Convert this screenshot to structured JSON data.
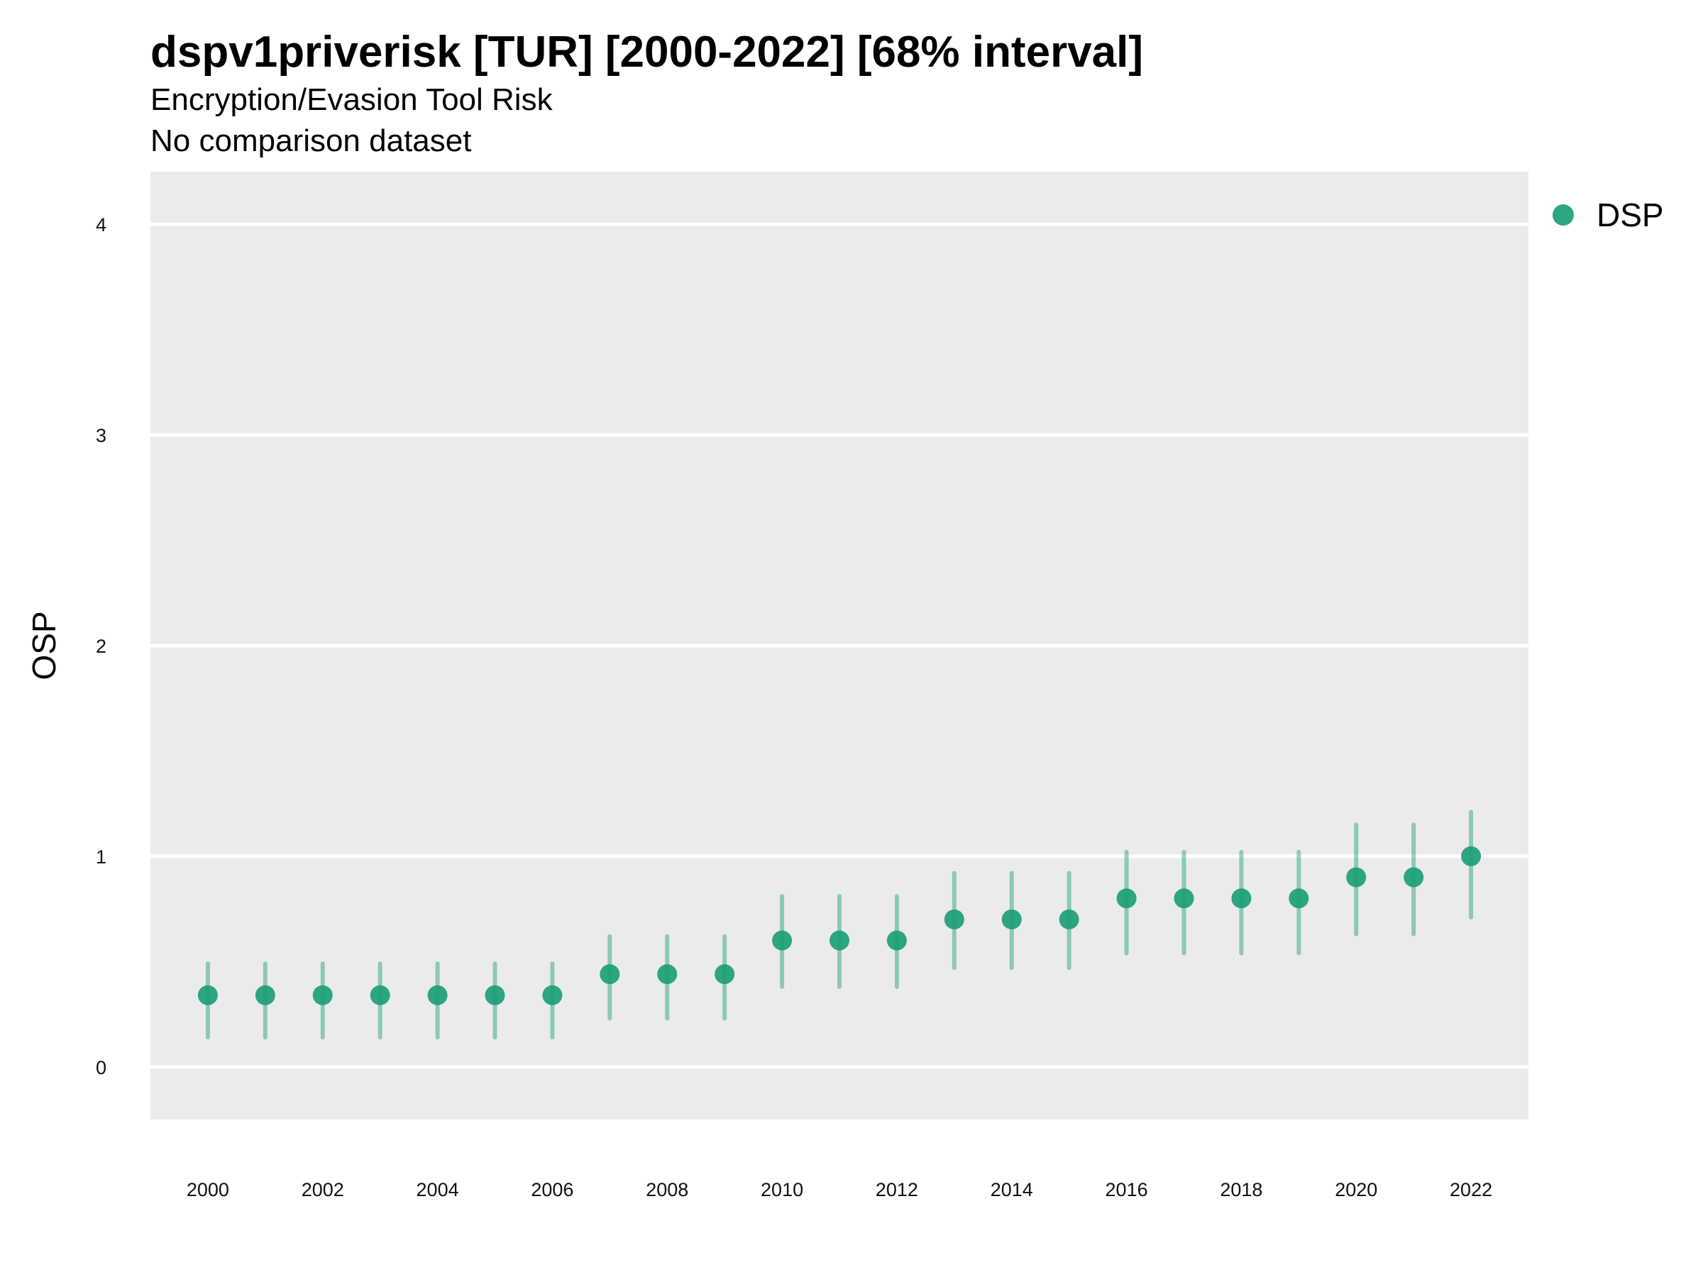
{
  "chart_data": {
    "type": "scatter",
    "title": "dspv1priverisk [TUR] [2000-2022] [68% interval]",
    "subtitle": "Encryption/Evasion Tool Risk",
    "caption": "No comparison dataset",
    "xlabel": "",
    "ylabel": "OSP",
    "xlim": [
      1999,
      2023
    ],
    "ylim": [
      -0.25,
      4.25
    ],
    "yticks": [
      0,
      1,
      2,
      3,
      4
    ],
    "xticks": [
      2000,
      2002,
      2004,
      2006,
      2008,
      2010,
      2012,
      2014,
      2016,
      2018,
      2020,
      2022
    ],
    "grid": true,
    "legend_position": "right",
    "series": [
      {
        "name": "DSP",
        "color": "#1b9e77",
        "x": [
          2000,
          2001,
          2002,
          2003,
          2004,
          2005,
          2006,
          2007,
          2008,
          2009,
          2010,
          2011,
          2012,
          2013,
          2014,
          2015,
          2016,
          2017,
          2018,
          2019,
          2020,
          2021,
          2022
        ],
        "y": [
          0.34,
          0.34,
          0.34,
          0.34,
          0.34,
          0.34,
          0.34,
          0.44,
          0.44,
          0.44,
          0.6,
          0.6,
          0.6,
          0.7,
          0.7,
          0.7,
          0.8,
          0.8,
          0.8,
          0.8,
          0.9,
          0.9,
          1.0
        ],
        "lower": [
          0.14,
          0.14,
          0.14,
          0.14,
          0.14,
          0.14,
          0.14,
          0.23,
          0.23,
          0.23,
          0.38,
          0.38,
          0.38,
          0.47,
          0.47,
          0.47,
          0.54,
          0.54,
          0.54,
          0.54,
          0.63,
          0.63,
          0.71
        ],
        "upper": [
          0.49,
          0.49,
          0.49,
          0.49,
          0.49,
          0.49,
          0.49,
          0.62,
          0.62,
          0.62,
          0.81,
          0.81,
          0.81,
          0.92,
          0.92,
          0.92,
          1.02,
          1.02,
          1.02,
          1.02,
          1.15,
          1.15,
          1.21
        ]
      }
    ]
  }
}
